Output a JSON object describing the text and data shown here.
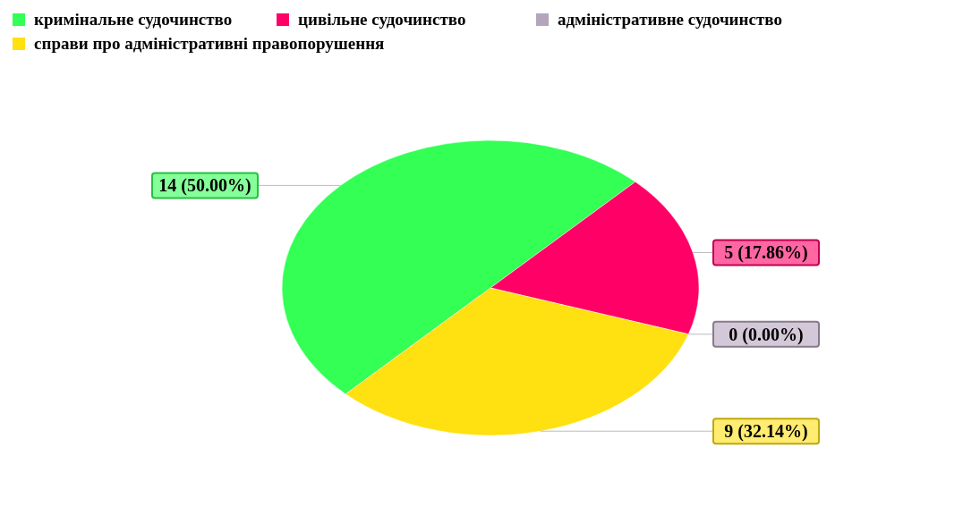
{
  "chart_data": {
    "type": "pie",
    "categories": [
      "кримінальне судочинство",
      "цивільне судочинство",
      "адміністративне судочинство",
      "справи про адміністративні правопорушення"
    ],
    "values": [
      14,
      5,
      0,
      9
    ],
    "colors": [
      "#33ff55",
      "#ff0066",
      "#b4a4bc",
      "#ffe010"
    ],
    "value_labels": [
      "14 (50.00%)",
      "5 (17.86%)",
      "0 (0.00%)",
      "9 (32.14%)"
    ],
    "legend": "top left"
  }
}
